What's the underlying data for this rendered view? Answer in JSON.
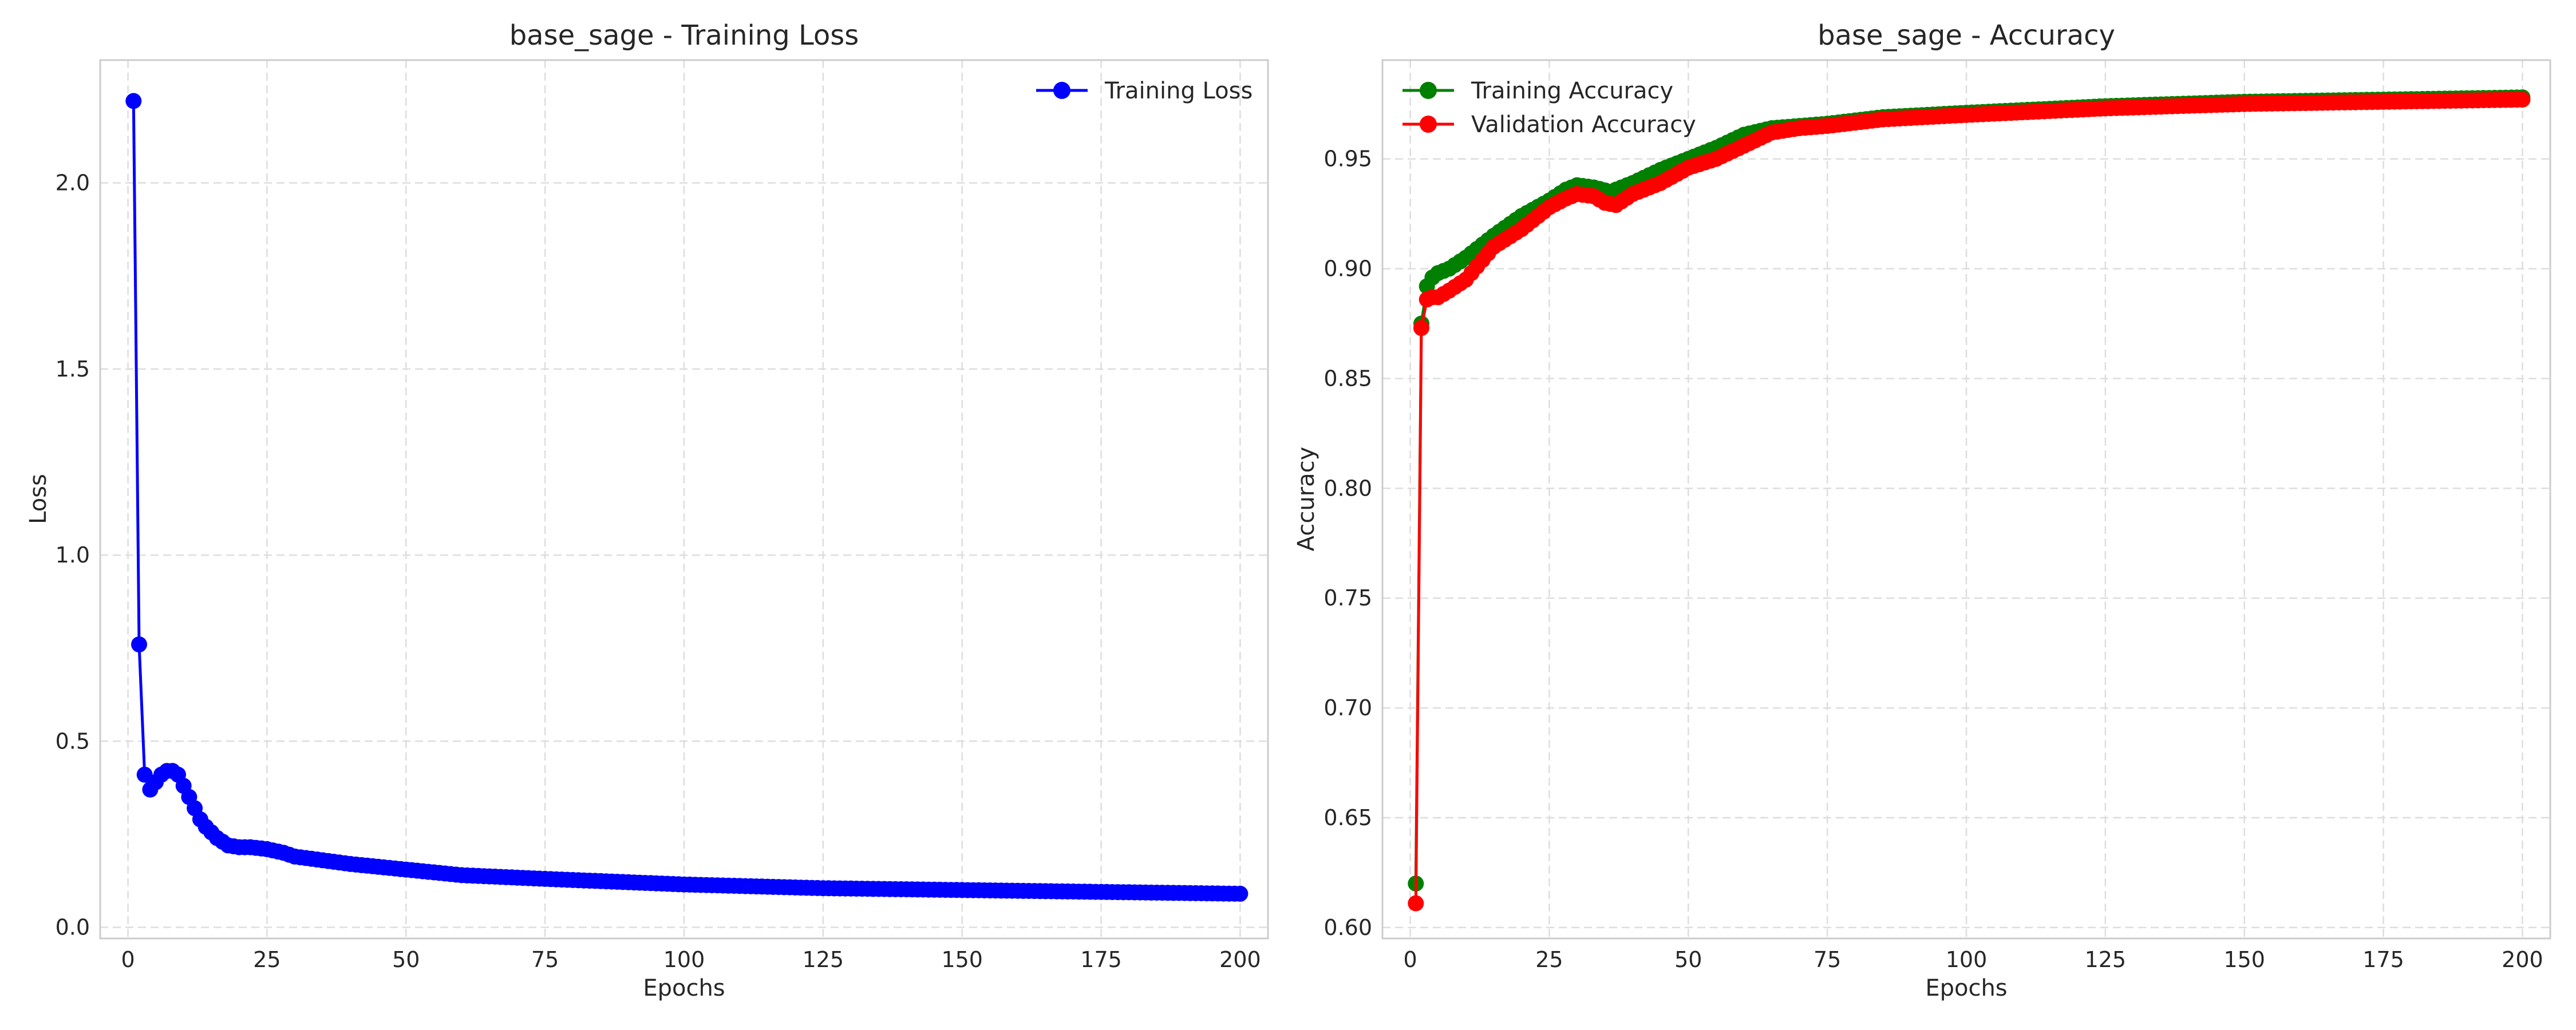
{
  "chart_data": [
    {
      "type": "line",
      "title": "base_sage - Training Loss",
      "xlabel": "Epochs",
      "ylabel": "Loss",
      "xlim": [
        -5,
        205
      ],
      "ylim": [
        -0.03,
        2.33
      ],
      "xticks": [
        0,
        25,
        50,
        75,
        100,
        125,
        150,
        175,
        200
      ],
      "yticks": [
        0.0,
        0.5,
        1.0,
        1.5,
        2.0
      ],
      "ytick_labels": [
        "0.0",
        "0.5",
        "1.0",
        "1.5",
        "2.0"
      ],
      "grid": true,
      "legend_position": "top-right",
      "series": [
        {
          "name": "Training Loss",
          "color": "#0000ff",
          "marker": "circle",
          "keypoints": [
            [
              1,
              2.22
            ],
            [
              2,
              0.76
            ],
            [
              3,
              0.41
            ],
            [
              4,
              0.37
            ],
            [
              5,
              0.39
            ],
            [
              6,
              0.41
            ],
            [
              7,
              0.42
            ],
            [
              8,
              0.42
            ],
            [
              9,
              0.41
            ],
            [
              10,
              0.38
            ],
            [
              11,
              0.35
            ],
            [
              12,
              0.32
            ],
            [
              13,
              0.29
            ],
            [
              14,
              0.27
            ],
            [
              15,
              0.255
            ],
            [
              16,
              0.24
            ],
            [
              17,
              0.23
            ],
            [
              18,
              0.22
            ],
            [
              20,
              0.215
            ],
            [
              22,
              0.215
            ],
            [
              25,
              0.21
            ],
            [
              28,
              0.2
            ],
            [
              30,
              0.19
            ],
            [
              40,
              0.17
            ],
            [
              50,
              0.155
            ],
            [
              60,
              0.14
            ],
            [
              75,
              0.13
            ],
            [
              100,
              0.115
            ],
            [
              125,
              0.105
            ],
            [
              150,
              0.1
            ],
            [
              175,
              0.095
            ],
            [
              200,
              0.09
            ]
          ]
        }
      ]
    },
    {
      "type": "line",
      "title": "base_sage - Accuracy",
      "xlabel": "Epochs",
      "ylabel": "Accuracy",
      "xlim": [
        -5,
        205
      ],
      "ylim": [
        0.595,
        0.995
      ],
      "xticks": [
        0,
        25,
        50,
        75,
        100,
        125,
        150,
        175,
        200
      ],
      "yticks": [
        0.6,
        0.65,
        0.7,
        0.75,
        0.8,
        0.85,
        0.9,
        0.95
      ],
      "ytick_labels": [
        "0.60",
        "0.65",
        "0.70",
        "0.75",
        "0.80",
        "0.85",
        "0.90",
        "0.95"
      ],
      "grid": true,
      "legend_position": "top-left",
      "series": [
        {
          "name": "Training Accuracy",
          "color": "#008000",
          "marker": "circle",
          "keypoints": [
            [
              1,
              0.62
            ],
            [
              2,
              0.875
            ],
            [
              3,
              0.892
            ],
            [
              4,
              0.896
            ],
            [
              5,
              0.898
            ],
            [
              7,
              0.9
            ],
            [
              10,
              0.905
            ],
            [
              15,
              0.915
            ],
            [
              20,
              0.924
            ],
            [
              25,
              0.931
            ],
            [
              28,
              0.936
            ],
            [
              30,
              0.938
            ],
            [
              33,
              0.937
            ],
            [
              36,
              0.935
            ],
            [
              40,
              0.939
            ],
            [
              45,
              0.945
            ],
            [
              50,
              0.95
            ],
            [
              55,
              0.955
            ],
            [
              60,
              0.961
            ],
            [
              65,
              0.964
            ],
            [
              70,
              0.965
            ],
            [
              75,
              0.966
            ],
            [
              85,
              0.969
            ],
            [
              100,
              0.971
            ],
            [
              125,
              0.974
            ],
            [
              150,
              0.976
            ],
            [
              175,
              0.977
            ],
            [
              200,
              0.978
            ]
          ]
        },
        {
          "name": "Validation Accuracy",
          "color": "#ff0000",
          "marker": "circle",
          "keypoints": [
            [
              1,
              0.611
            ],
            [
              2,
              0.873
            ],
            [
              3,
              0.886
            ],
            [
              4,
              0.887
            ],
            [
              5,
              0.887
            ],
            [
              7,
              0.89
            ],
            [
              10,
              0.895
            ],
            [
              15,
              0.91
            ],
            [
              20,
              0.918
            ],
            [
              25,
              0.928
            ],
            [
              28,
              0.932
            ],
            [
              30,
              0.934
            ],
            [
              33,
              0.933
            ],
            [
              35,
              0.93
            ],
            [
              37,
              0.929
            ],
            [
              40,
              0.934
            ],
            [
              45,
              0.939
            ],
            [
              50,
              0.946
            ],
            [
              55,
              0.95
            ],
            [
              60,
              0.956
            ],
            [
              65,
              0.962
            ],
            [
              70,
              0.964
            ],
            [
              75,
              0.965
            ],
            [
              85,
              0.968
            ],
            [
              100,
              0.97
            ],
            [
              125,
              0.973
            ],
            [
              150,
              0.975
            ],
            [
              175,
              0.976
            ],
            [
              200,
              0.977
            ]
          ]
        }
      ]
    }
  ]
}
